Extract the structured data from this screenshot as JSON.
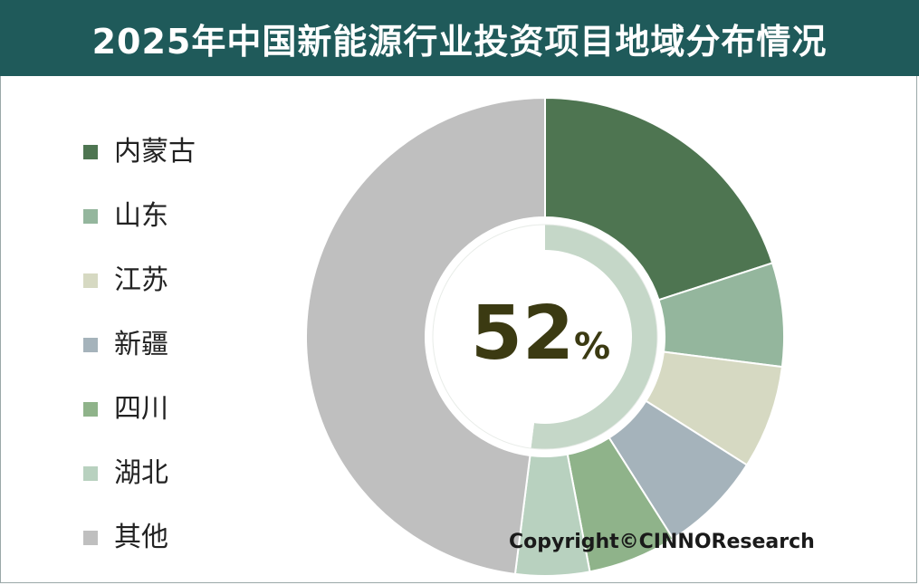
{
  "title": "2025年中国新能源行业投资项目地域分布情况",
  "copyright": "Copyright©CINNOResearch",
  "chart_data": {
    "type": "pie",
    "variant": "double-donut",
    "title": "2025年中国新能源行业投资项目地域分布情况",
    "legend_position": "left",
    "center_label": {
      "value": "52",
      "unit": "%"
    },
    "categories": [
      "内蒙古",
      "山东",
      "江苏",
      "新疆",
      "四川",
      "湖北",
      "其他"
    ],
    "colors": [
      "#4e7551",
      "#94b69d",
      "#d6d9c2",
      "#a5b3bb",
      "#8fb38a",
      "#b8d1bf",
      "#bfbfbf"
    ],
    "outer_ring": {
      "values": [
        20,
        7,
        7,
        7,
        6,
        5,
        48
      ]
    },
    "inner_ring": {
      "values": [
        52,
        48
      ],
      "colors": [
        "#c5d7c8",
        "#ffffff"
      ]
    }
  }
}
